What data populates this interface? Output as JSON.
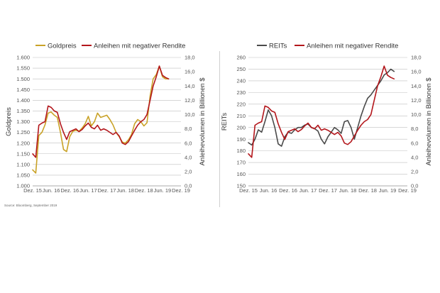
{
  "source_note": "Source: Bloomberg, September 2019",
  "colors": {
    "gold": "#C9A227",
    "red": "#B3161B",
    "reits": "#4A4A4A",
    "grid": "#BFBFBF"
  },
  "chart_data": [
    {
      "type": "line",
      "title": "",
      "legend_position": "top",
      "grid": true,
      "x_ticks": [
        "Dez. 15",
        "Jun. 16",
        "Dez. 16",
        "Jun. 17",
        "Dez. 17",
        "Jun. 18",
        "Dez. 18",
        "Jun. 19",
        "Dez. 19"
      ],
      "x_range": [
        0,
        48
      ],
      "ylabel_left": "Goldpreis",
      "ylabel_right": "Anleihevolumen in Billionen $",
      "y_left_ticks": [
        "1.600",
        "1.550",
        "1.500",
        "1.450",
        "1.400",
        "1.350",
        "1.300",
        "1.250",
        "1.200",
        "1.150",
        "1.100",
        "1.050",
        "1.000"
      ],
      "y_left_range": [
        1000,
        1600
      ],
      "y_right_ticks": [
        "18,0",
        "16,0",
        "14,0",
        "12,0",
        "10,0",
        "8,0",
        "6,0",
        "4,0",
        "2,0",
        "0,0"
      ],
      "y_right_range": [
        0,
        18
      ],
      "series": [
        {
          "name": "Goldpreis",
          "color": "#C9A227",
          "axis": "left",
          "x": [
            0,
            1,
            2,
            3,
            4,
            5,
            6,
            7,
            8,
            9,
            10,
            11,
            12,
            13,
            14,
            15,
            16,
            17,
            18,
            19,
            20,
            21,
            22,
            23,
            24,
            25,
            26,
            27,
            28,
            29,
            30,
            31,
            32,
            33,
            34,
            35,
            36,
            37,
            38,
            39,
            40,
            41,
            42,
            43,
            44
          ],
          "values": [
            1075,
            1060,
            1235,
            1250,
            1285,
            1340,
            1345,
            1330,
            1320,
            1250,
            1170,
            1160,
            1230,
            1255,
            1260,
            1255,
            1270,
            1290,
            1325,
            1280,
            1300,
            1340,
            1320,
            1325,
            1330,
            1310,
            1285,
            1250,
            1230,
            1205,
            1200,
            1215,
            1240,
            1290,
            1310,
            1300,
            1280,
            1295,
            1420,
            1500,
            1520,
            1560,
            1510,
            1500,
            1500
          ]
        },
        {
          "name": "Anleihen mit negativer Rendite",
          "color": "#B3161B",
          "axis": "right",
          "x": [
            0,
            1,
            2,
            3,
            4,
            5,
            6,
            7,
            8,
            9,
            10,
            11,
            12,
            13,
            14,
            15,
            16,
            17,
            18,
            19,
            20,
            21,
            22,
            23,
            24,
            25,
            26,
            27,
            28,
            29,
            30,
            31,
            32,
            33,
            34,
            35,
            36,
            37,
            38,
            39,
            40,
            41,
            42,
            43,
            44
          ],
          "values": [
            4.5,
            4.0,
            8.5,
            8.8,
            9.0,
            11.2,
            11.0,
            10.5,
            10.3,
            8.7,
            7.5,
            6.5,
            7.6,
            7.8,
            8.0,
            7.6,
            7.9,
            8.4,
            8.8,
            8.2,
            8.0,
            8.5,
            7.8,
            8.0,
            7.8,
            7.5,
            7.2,
            7.5,
            7.0,
            6.0,
            5.8,
            6.2,
            7.0,
            7.8,
            8.5,
            9.0,
            9.3,
            10.0,
            12.0,
            14.0,
            15.3,
            16.8,
            15.5,
            15.2,
            15.0
          ]
        }
      ]
    },
    {
      "type": "line",
      "title": "",
      "legend_position": "top",
      "grid": true,
      "x_ticks": [
        "Dez. 15",
        "Jun. 16",
        "Dez. 16",
        "Jun. 17",
        "Dez. 17",
        "Jun. 18",
        "Dez. 18",
        "Jun. 19",
        "Dez. 19"
      ],
      "x_range": [
        0,
        48
      ],
      "ylabel_left": "REITs",
      "ylabel_right": "Anleihevolumen in Billionen $",
      "y_left_ticks": [
        "260",
        "250",
        "240",
        "230",
        "220",
        "210",
        "200",
        "190",
        "180",
        "170",
        "160",
        "150"
      ],
      "y_left_range": [
        150,
        260
      ],
      "y_right_ticks": [
        "18,0",
        "16,0",
        "14,0",
        "12,0",
        "10,0",
        "8,0",
        "6,0",
        "4,0",
        "2,0",
        "0,0"
      ],
      "y_right_range": [
        0,
        18
      ],
      "series": [
        {
          "name": "REITs",
          "color": "#4A4A4A",
          "axis": "left",
          "x": [
            0,
            1,
            2,
            3,
            4,
            5,
            6,
            7,
            8,
            9,
            10,
            11,
            12,
            13,
            14,
            15,
            16,
            17,
            18,
            19,
            20,
            21,
            22,
            23,
            24,
            25,
            26,
            27,
            28,
            29,
            30,
            31,
            32,
            33,
            34,
            35,
            36,
            37,
            38,
            39,
            40,
            41,
            42,
            43,
            44
          ],
          "values": [
            187,
            185,
            190,
            198,
            196,
            205,
            215,
            210,
            200,
            186,
            184,
            192,
            196,
            195,
            198,
            200,
            200,
            202,
            203,
            200,
            199,
            197,
            190,
            186,
            192,
            196,
            200,
            198,
            195,
            205,
            206,
            200,
            190,
            200,
            210,
            218,
            225,
            228,
            232,
            236,
            240,
            245,
            247,
            250,
            248
          ]
        },
        {
          "name": "Anleihen mit negativer Rendite",
          "color": "#B3161B",
          "axis": "right",
          "x": [
            0,
            1,
            2,
            3,
            4,
            5,
            6,
            7,
            8,
            9,
            10,
            11,
            12,
            13,
            14,
            15,
            16,
            17,
            18,
            19,
            20,
            21,
            22,
            23,
            24,
            25,
            26,
            27,
            28,
            29,
            30,
            31,
            32,
            33,
            34,
            35,
            36,
            37,
            38,
            39,
            40,
            41,
            42,
            43,
            44
          ],
          "values": [
            4.5,
            4.0,
            8.5,
            8.8,
            9.0,
            11.2,
            11.0,
            10.5,
            10.3,
            8.7,
            7.5,
            6.5,
            7.6,
            7.8,
            8.0,
            7.6,
            7.9,
            8.4,
            8.8,
            8.2,
            8.0,
            8.5,
            7.8,
            8.0,
            7.8,
            7.5,
            7.2,
            7.5,
            7.0,
            6.0,
            5.8,
            6.2,
            7.0,
            7.8,
            8.5,
            9.0,
            9.3,
            10.0,
            12.0,
            14.0,
            15.3,
            16.8,
            15.5,
            15.2,
            15.0
          ]
        }
      ]
    }
  ]
}
